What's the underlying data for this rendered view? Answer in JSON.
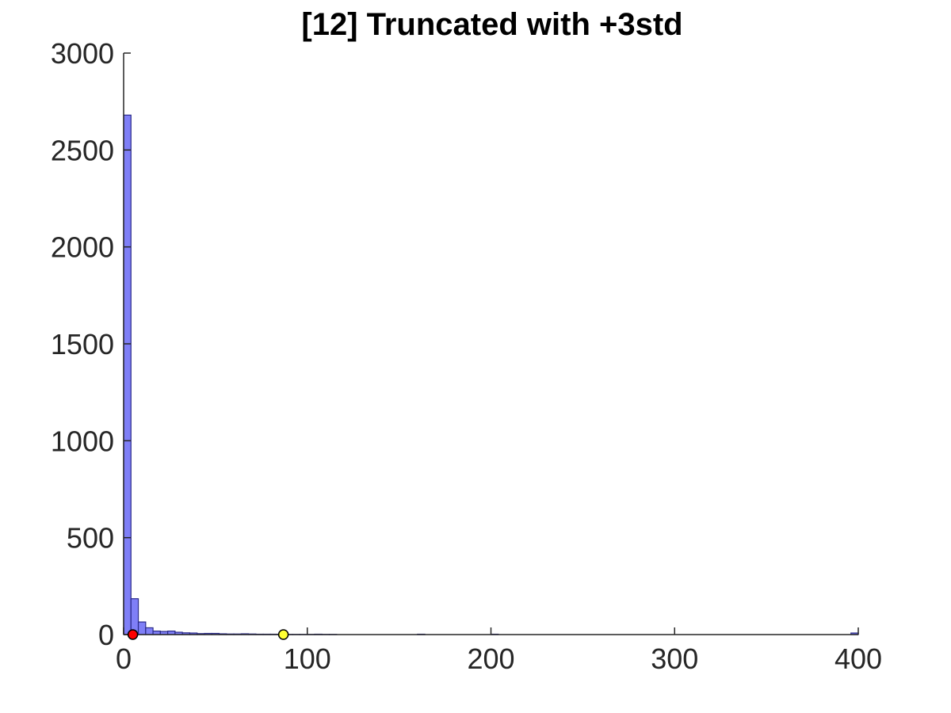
{
  "chart_data": {
    "type": "histogram",
    "title": "[12] Truncated with +3std",
    "xlabel": "",
    "ylabel": "",
    "xlim": [
      0,
      400
    ],
    "ylim": [
      0,
      3000
    ],
    "xticks": [
      0,
      100,
      200,
      300,
      400
    ],
    "yticks": [
      0,
      500,
      1000,
      1500,
      2000,
      2500,
      3000
    ],
    "grid": false,
    "bin_width": 4,
    "bins": [
      {
        "x": 0,
        "count": 2680
      },
      {
        "x": 4,
        "count": 185
      },
      {
        "x": 8,
        "count": 65
      },
      {
        "x": 12,
        "count": 35
      },
      {
        "x": 16,
        "count": 18
      },
      {
        "x": 20,
        "count": 16
      },
      {
        "x": 24,
        "count": 18
      },
      {
        "x": 28,
        "count": 12
      },
      {
        "x": 32,
        "count": 9
      },
      {
        "x": 36,
        "count": 8
      },
      {
        "x": 40,
        "count": 5
      },
      {
        "x": 44,
        "count": 6
      },
      {
        "x": 48,
        "count": 6
      },
      {
        "x": 52,
        "count": 4
      },
      {
        "x": 56,
        "count": 3
      },
      {
        "x": 60,
        "count": 3
      },
      {
        "x": 64,
        "count": 4
      },
      {
        "x": 68,
        "count": 3
      },
      {
        "x": 72,
        "count": 2
      },
      {
        "x": 76,
        "count": 2
      },
      {
        "x": 80,
        "count": 2
      },
      {
        "x": 84,
        "count": 1
      },
      {
        "x": 88,
        "count": 1
      },
      {
        "x": 92,
        "count": 1
      },
      {
        "x": 96,
        "count": 1
      },
      {
        "x": 100,
        "count": 1
      },
      {
        "x": 104,
        "count": 2
      },
      {
        "x": 108,
        "count": 1
      },
      {
        "x": 112,
        "count": 1
      },
      {
        "x": 160,
        "count": 2
      },
      {
        "x": 200,
        "count": 2
      },
      {
        "x": 396,
        "count": 8
      }
    ],
    "markers": [
      {
        "x": 5,
        "y": 0,
        "color": "#ff0000"
      },
      {
        "x": 87,
        "y": 0,
        "color": "#ffff33"
      }
    ],
    "colors": {
      "bar_fill": "#7f7ff7",
      "bar_edge": "#2a2a8a",
      "axis": "#262626",
      "marker_edge": "#000000"
    }
  }
}
